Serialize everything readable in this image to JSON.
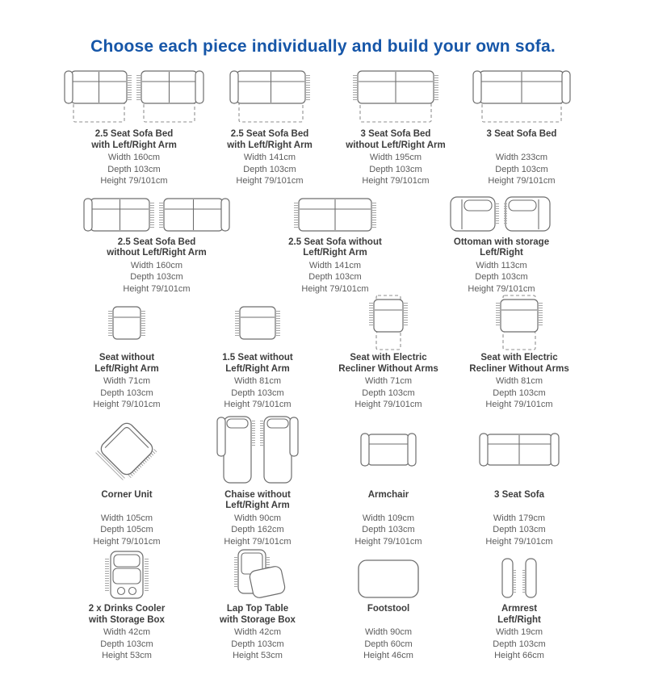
{
  "page": {
    "heading": "Choose each piece individually and build your own sofa.",
    "heading_color": "#1656a8",
    "diagram_stroke_color": "#6e6e6e",
    "dashed_color": "#8f8f8f"
  },
  "rows": [
    {
      "items": [
        {
          "drawing": "sofa-bed-with-arm-pair",
          "title_lines": [
            "2.5 Seat Sofa Bed",
            "with Left/Right Arm"
          ],
          "dims": [
            "Width 160cm",
            "Depth 103cm",
            "Height 79/101cm"
          ]
        },
        {
          "drawing": "sofa-bed-with-arm",
          "title_lines": [
            "2.5 Seat Sofa Bed",
            "with Left/Right Arm"
          ],
          "dims": [
            "Width 141cm",
            "Depth 103cm",
            "Height 79/101cm"
          ]
        },
        {
          "drawing": "sofa-bed-without-arm",
          "title_lines": [
            "3 Seat Sofa Bed",
            "without Left/Right Arm"
          ],
          "dims": [
            "Width 195cm",
            "Depth 103cm",
            "Height 79/101cm"
          ]
        },
        {
          "drawing": "sofa-bed-both-arms",
          "title_lines": [
            "3 Seat Sofa Bed"
          ],
          "dims": [
            "Width 233cm",
            "Depth 103cm",
            "Height 79/101cm"
          ]
        }
      ]
    },
    {
      "items": [
        {
          "drawing": "sofa-with-arm-pair",
          "title_lines": [
            "2.5 Seat Sofa Bed",
            "without Left/Right Arm"
          ],
          "dims": [
            "Width 160cm",
            "Depth 103cm",
            "Height 79/101cm"
          ]
        },
        {
          "drawing": "sofa-without-arm",
          "title_lines": [
            "2.5 Seat Sofa without",
            "Left/Right Arm"
          ],
          "dims": [
            "Width 141cm",
            "Depth 103cm",
            "Height 79/101cm"
          ]
        },
        {
          "drawing": "ottoman-storage-pair",
          "title_lines": [
            "Ottoman with storage",
            "Left/Right"
          ],
          "dims": [
            "Width 113cm",
            "Depth 103cm",
            "Height 79/101cm"
          ]
        }
      ]
    },
    {
      "items": [
        {
          "drawing": "seat-without-arm",
          "title_lines": [
            "Seat without",
            "Left/Right Arm"
          ],
          "dims": [
            "Width 71cm",
            "Depth 103cm",
            "Height 79/101cm"
          ]
        },
        {
          "drawing": "seat-1-5-without-arm",
          "title_lines": [
            "1.5 Seat without",
            "Left/Right Arm"
          ],
          "dims": [
            "Width 81cm",
            "Depth 103cm",
            "Height 79/101cm"
          ]
        },
        {
          "drawing": "electric-recliner-seat",
          "title_lines": [
            "Seat with Electric",
            "Recliner Without Arms"
          ],
          "dims": [
            "Width 71cm",
            "Depth 103cm",
            "Height 79/101cm"
          ]
        },
        {
          "drawing": "electric-recliner-seat-wide",
          "title_lines": [
            "Seat with Electric",
            "Recliner Without Arms"
          ],
          "dims": [
            "Width 81cm",
            "Depth 103cm",
            "Height 79/101cm"
          ]
        }
      ]
    },
    {
      "items": [
        {
          "drawing": "corner-unit",
          "title_lines": [
            "Corner Unit"
          ],
          "dims": [
            "Width 105cm",
            "Depth 105cm",
            "Height 79/101cm"
          ]
        },
        {
          "drawing": "chaise-pair",
          "title_lines": [
            "Chaise  without",
            "Left/Right Arm"
          ],
          "dims": [
            "Width 90cm",
            "Depth 162cm",
            "Height 79/101cm"
          ]
        },
        {
          "drawing": "armchair",
          "title_lines": [
            "Armchair"
          ],
          "dims": [
            "Width 109cm",
            "Depth 103cm",
            "Height 79/101cm"
          ]
        },
        {
          "drawing": "three-seat-sofa",
          "title_lines": [
            "3 Seat Sofa"
          ],
          "dims": [
            "Width 179cm",
            "Depth 103cm",
            "Height 79/101cm"
          ]
        }
      ]
    },
    {
      "items": [
        {
          "drawing": "drinks-cooler-storage",
          "title_lines": [
            "2 x Drinks Cooler",
            "with Storage Box"
          ],
          "dims": [
            "Width 42cm",
            "Depth 103cm",
            "Height 53cm"
          ]
        },
        {
          "drawing": "laptop-table-storage",
          "title_lines": [
            "Lap Top Table",
            "with Storage Box"
          ],
          "dims": [
            "Width 42cm",
            "Depth 103cm",
            "Height 53cm"
          ]
        },
        {
          "drawing": "footstool",
          "title_lines": [
            "Footstool"
          ],
          "dims": [
            "Width 90cm",
            "Depth 60cm",
            "Height 46cm"
          ]
        },
        {
          "drawing": "armrest-pair",
          "title_lines": [
            "Armrest",
            "Left/Right"
          ],
          "dims": [
            "Width 19cm",
            "Depth 103cm",
            "Height 66cm"
          ]
        }
      ]
    }
  ]
}
